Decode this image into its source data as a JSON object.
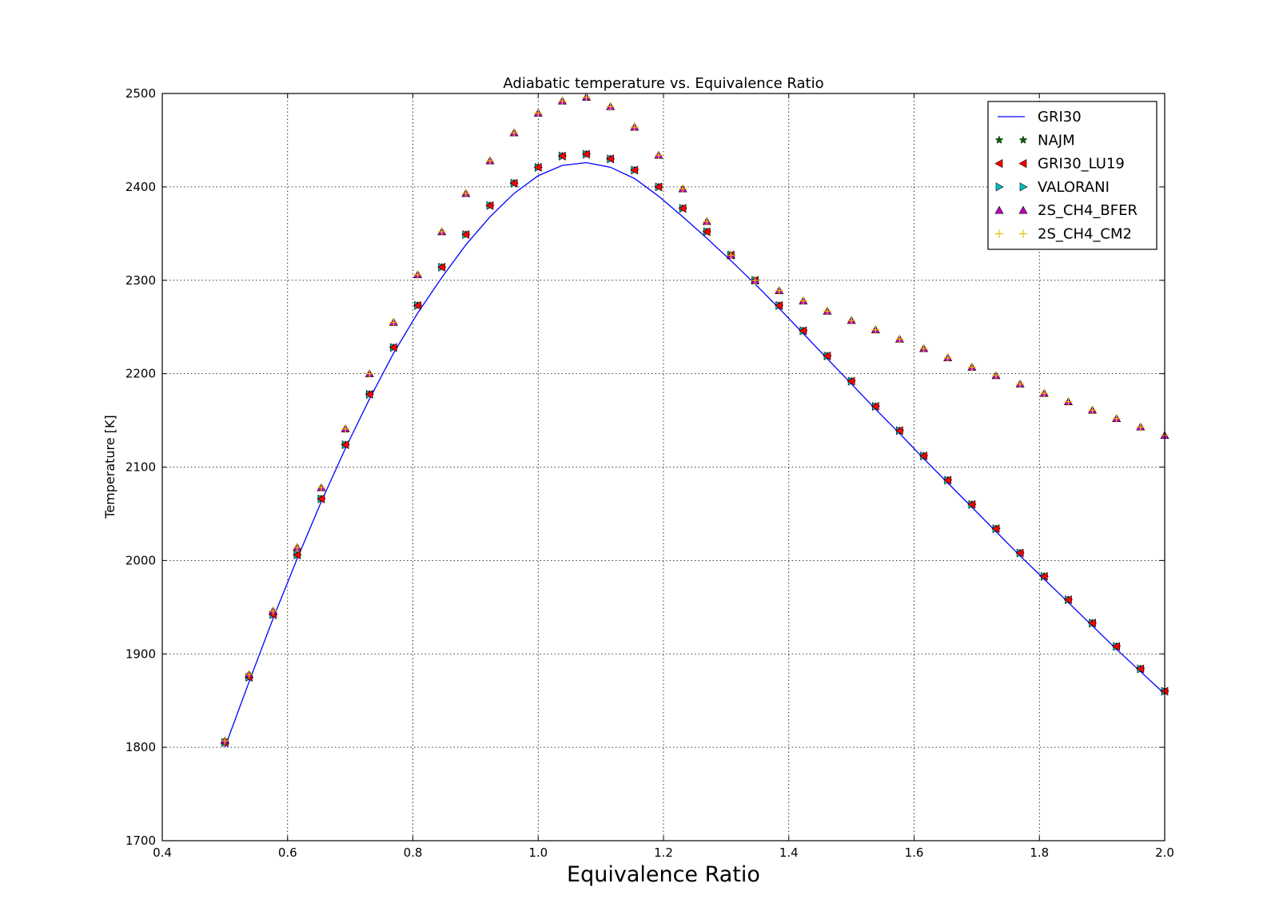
{
  "chart_data": {
    "type": "line",
    "title": "Adiabatic temperature vs. Equivalence Ratio",
    "xlabel": "Equivalence Ratio",
    "ylabel": "Temperature [K]",
    "xlim": [
      0.4,
      2.0
    ],
    "ylim": [
      1700,
      2500
    ],
    "xticks": [
      "0.4",
      "0.6",
      "0.8",
      "1.0",
      "1.2",
      "1.4",
      "1.6",
      "1.8",
      "2.0"
    ],
    "yticks": [
      "1700",
      "1800",
      "1900",
      "2000",
      "2100",
      "2200",
      "2300",
      "2400",
      "2500"
    ],
    "grid": true,
    "legend_position": "top-right",
    "x": [
      0.5,
      0.5385,
      0.5769,
      0.6154,
      0.6538,
      0.6923,
      0.7308,
      0.7692,
      0.8077,
      0.8462,
      0.8846,
      0.9231,
      0.9615,
      1.0,
      1.0385,
      1.0769,
      1.1154,
      1.1538,
      1.1923,
      1.2308,
      1.2692,
      1.3077,
      1.3462,
      1.3846,
      1.4231,
      1.4615,
      1.5,
      1.5385,
      1.5769,
      1.6154,
      1.6538,
      1.6923,
      1.7308,
      1.7692,
      1.8077,
      1.8462,
      1.8846,
      1.9231,
      1.9615,
      2.0
    ],
    "series": [
      {
        "name": "GRI30",
        "style": "line",
        "color": "#0000ff",
        "values": [
          1800,
          1870,
          1938,
          2002,
          2063,
          2120,
          2173,
          2222,
          2265,
          2303,
          2338,
          2368,
          2393,
          2412,
          2423,
          2426,
          2421,
          2409,
          2390,
          2368,
          2345,
          2321,
          2296,
          2270,
          2243,
          2216,
          2189,
          2162,
          2136,
          2109,
          2083,
          2057,
          2031,
          2005,
          1980,
          1955,
          1930,
          1905,
          1881,
          1857
        ]
      },
      {
        "name": "NAJM",
        "style": "marker",
        "marker": "star",
        "color": "#006400",
        "values": [
          1805,
          1875,
          1942,
          2006,
          2066,
          2124,
          2178,
          2228,
          2273,
          2314,
          2349,
          2380,
          2404,
          2421,
          2433,
          2435,
          2430,
          2418,
          2400,
          2377,
          2352,
          2327,
          2300,
          2273,
          2246,
          2219,
          2192,
          2165,
          2139,
          2112,
          2086,
          2060,
          2034,
          2008,
          1983,
          1958,
          1933,
          1908,
          1884,
          1860
        ]
      },
      {
        "name": "GRI30_LU19",
        "style": "marker",
        "marker": "triangle-left",
        "color": "#ff0000",
        "values": [
          1805,
          1875,
          1942,
          2006,
          2066,
          2124,
          2178,
          2228,
          2273,
          2314,
          2349,
          2380,
          2404,
          2421,
          2433,
          2435,
          2430,
          2418,
          2400,
          2377,
          2352,
          2327,
          2300,
          2273,
          2246,
          2219,
          2192,
          2165,
          2139,
          2112,
          2086,
          2060,
          2034,
          2008,
          1983,
          1958,
          1933,
          1908,
          1884,
          1860
        ]
      },
      {
        "name": "VALORANI",
        "style": "marker",
        "marker": "triangle-right",
        "color": "#00bfbf",
        "values": [
          1805,
          1875,
          1942,
          2006,
          2066,
          2124,
          2178,
          2228,
          2273,
          2314,
          2349,
          2380,
          2404,
          2421,
          2433,
          2435,
          2430,
          2418,
          2400,
          2377,
          2352,
          2327,
          2300,
          2273,
          2246,
          2219,
          2192,
          2165,
          2139,
          2112,
          2086,
          2060,
          2034,
          2008,
          1983,
          1958,
          1933,
          1908,
          1884,
          1860
        ]
      },
      {
        "name": "2S_CH4_BFER",
        "style": "marker",
        "marker": "triangle-up",
        "color": "#bf00bf",
        "values": [
          1807,
          1878,
          1946,
          2014,
          2078,
          2141,
          2200,
          2255,
          2306,
          2352,
          2393,
          2428,
          2458,
          2479,
          2492,
          2496,
          2486,
          2464,
          2434,
          2398,
          2363,
          2327,
          2300,
          2289,
          2278,
          2267,
          2257,
          2247,
          2237,
          2227,
          2217,
          2207,
          2198,
          2189,
          2179,
          2170,
          2161,
          2152,
          2143,
          2134
        ]
      },
      {
        "name": "2S_CH4_CM2",
        "style": "marker",
        "marker": "plus",
        "color": "#e6c000",
        "values": [
          1807,
          1878,
          1946,
          2014,
          2078,
          2141,
          2200,
          2255,
          2306,
          2352,
          2393,
          2428,
          2458,
          2479,
          2492,
          2496,
          2486,
          2464,
          2434,
          2398,
          2363,
          2327,
          2300,
          2289,
          2278,
          2267,
          2257,
          2247,
          2237,
          2227,
          2217,
          2207,
          2198,
          2189,
          2179,
          2170,
          2161,
          2152,
          2143,
          2134
        ]
      }
    ]
  }
}
